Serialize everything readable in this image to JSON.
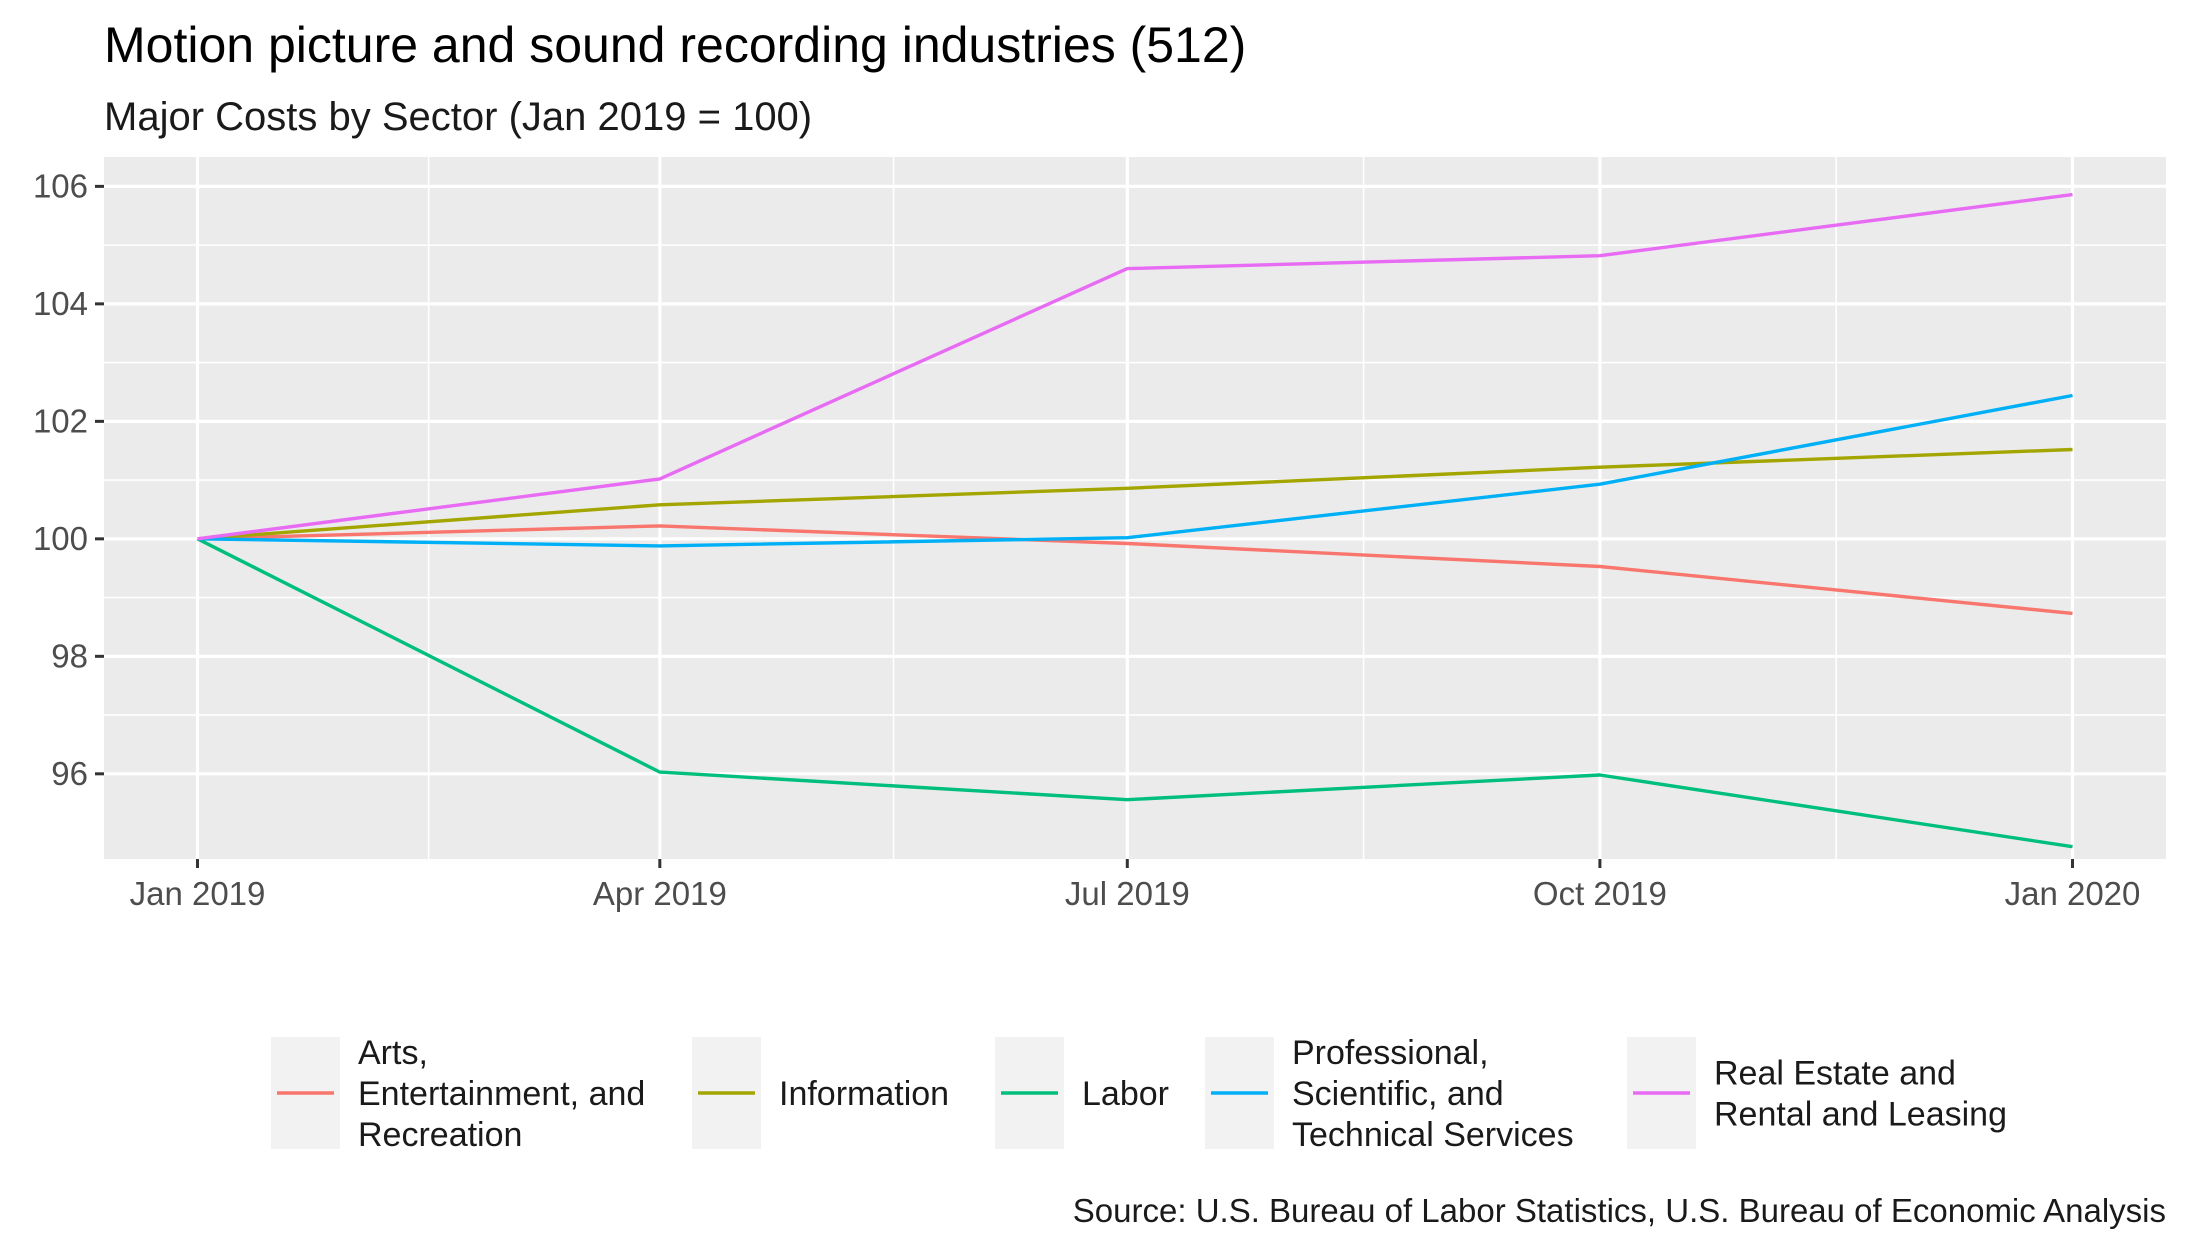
{
  "chart_data": {
    "type": "line",
    "title": "Motion picture and sound recording industries (512)",
    "subtitle": "Major Costs by Sector (Jan 2019 = 100)",
    "caption": "Source: U.S. Bureau of Labor Statistics, U.S. Bureau of Economic Analysis",
    "xlabel": "",
    "ylabel": "",
    "x": [
      "2019-01-01",
      "2019-04-01",
      "2019-07-01",
      "2019-10-01",
      "2020-01-01"
    ],
    "x_tick_labels": [
      "Jan 2019",
      "Apr 2019",
      "Jul 2019",
      "Oct 2019",
      "Jan 2020"
    ],
    "y_ticks": [
      96,
      98,
      100,
      102,
      104,
      106
    ],
    "ylim": [
      94.55,
      106.5
    ],
    "grid": true,
    "legend_position": "bottom",
    "series": [
      {
        "name": "Arts,\nEntertainment, and\nRecreation",
        "color": "#F8766D",
        "values": [
          100,
          100.22,
          99.92,
          99.53,
          98.73
        ]
      },
      {
        "name": "Information",
        "color": "#A3A500",
        "values": [
          100,
          100.58,
          100.86,
          101.22,
          101.52
        ]
      },
      {
        "name": "Labor",
        "color": "#00BF7D",
        "values": [
          100,
          96.03,
          95.56,
          95.98,
          94.76
        ]
      },
      {
        "name": "Professional,\nScientific, and\nTechnical Services",
        "color": "#00B0F6",
        "values": [
          100,
          99.88,
          100.02,
          100.93,
          102.44
        ]
      },
      {
        "name": "Real Estate and\nRental and Leasing",
        "color": "#E76BF3",
        "values": [
          100,
          101.02,
          104.6,
          104.82,
          105.86
        ]
      }
    ]
  }
}
